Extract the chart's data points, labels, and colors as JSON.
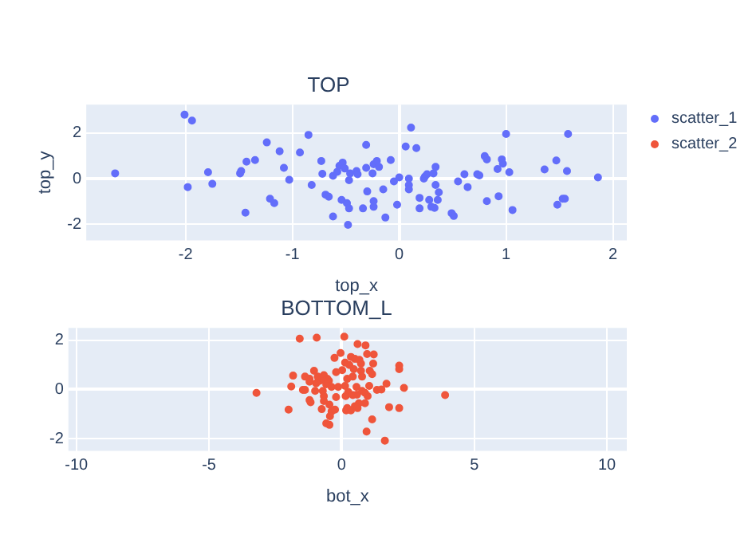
{
  "chart_data": [
    {
      "type": "scatter",
      "title": "TOP",
      "xlabel": "top_x",
      "ylabel": "top_y",
      "xlim": [
        -2.93,
        2.13
      ],
      "ylim": [
        -2.7,
        3.23
      ],
      "xticks": [
        -2,
        -1,
        0,
        1,
        2
      ],
      "yticks": [
        -2,
        0,
        2
      ],
      "grid": true,
      "legend": "right",
      "marker": "circle",
      "x": [
        -2.66,
        -2.01,
        -1.94,
        -1.98,
        -1.79,
        -1.75,
        -1.49,
        -1.48,
        -1.43,
        -1.44,
        -1.35,
        -1.24,
        -1.21,
        -1.17,
        -1.12,
        -1.08,
        -1.03,
        -0.93,
        -0.85,
        -0.82,
        -0.73,
        -0.72,
        -0.69,
        -0.66,
        -0.62,
        -0.62,
        -0.58,
        -0.56,
        -0.53,
        -0.51,
        -0.54,
        -0.49,
        -0.47,
        -0.48,
        -0.47,
        -0.46,
        -0.4,
        -0.39,
        -0.34,
        -0.31,
        -0.31,
        -0.3,
        -0.25,
        -0.24,
        -0.24,
        -0.24,
        -0.21,
        -0.19,
        -0.15,
        -0.13,
        -0.08,
        -0.05,
        -0.02,
        0.0,
        0.06,
        0.09,
        0.09,
        0.09,
        0.11,
        0.16,
        0.19,
        0.19,
        0.23,
        0.24,
        0.26,
        0.28,
        0.3,
        0.32,
        0.33,
        0.34,
        0.34,
        0.36,
        0.37,
        0.49,
        0.51,
        0.55,
        0.61,
        0.64,
        0.73,
        0.75,
        0.8,
        0.82,
        0.82,
        0.92,
        0.93,
        0.96,
        0.97,
        1.0,
        1.03,
        1.06,
        1.36,
        1.47,
        1.48,
        1.53,
        1.55,
        1.57,
        1.58,
        1.86
      ],
      "series": [
        {
          "name": "scatter_1",
          "color": "#636efa",
          "values": [
            0.23,
            2.79,
            2.53,
            -0.37,
            0.28,
            -0.23,
            0.23,
            0.33,
            0.74,
            -1.49,
            0.81,
            1.58,
            -0.88,
            -1.07,
            1.19,
            0.47,
            -0.05,
            1.14,
            1.91,
            -0.28,
            0.77,
            0.21,
            -0.7,
            -0.79,
            -1.65,
            0.12,
            0.3,
            0.56,
            0.7,
            0.44,
            -0.93,
            -1.07,
            -1.3,
            -2.02,
            -0.07,
            0.23,
            0.33,
            0.19,
            -1.3,
            0.47,
            1.47,
            -0.56,
            0.23,
            0.63,
            -0.98,
            -1.23,
            0.77,
            0.51,
            -0.47,
            -1.7,
            0.81,
            -0.12,
            -1.14,
            0.05,
            1.4,
            0.0,
            -0.28,
            -0.47,
            2.23,
            1.33,
            -0.84,
            -1.3,
            0.0,
            0.09,
            0.19,
            -0.93,
            -1.23,
            0.23,
            -1.28,
            0.51,
            -0.28,
            -0.93,
            -0.6,
            -1.51,
            -1.63,
            -0.12,
            0.19,
            -0.37,
            0.19,
            0.14,
            0.98,
            0.84,
            -0.98,
            0.42,
            -0.77,
            0.84,
            0.65,
            1.95,
            0.28,
            -1.37,
            0.4,
            0.79,
            -1.14,
            -0.88,
            -0.88,
            0.33,
            1.95,
            0.05
          ]
        }
      ]
    },
    {
      "type": "scatter",
      "title": "BOTTOM_L",
      "xlabel": "bot_x",
      "xlim": [
        -10.3,
        10.75
      ],
      "ylim": [
        -2.5,
        2.5
      ],
      "xticks": [
        -10,
        -5,
        0,
        5,
        10
      ],
      "yticks": [
        -2,
        0,
        2
      ],
      "grid": true,
      "legend": "right",
      "marker": "circle",
      "x": [
        -3.21,
        -1.58,
        -0.94,
        0.1,
        0.6,
        0.9,
        -0.04,
        0.96,
        1.21,
        -0.27,
        0.35,
        0.5,
        0.67,
        0.13,
        0.29,
        0.73,
        1.19,
        2.17,
        2.17,
        -1.04,
        -1.83,
        -1.38,
        -1.21,
        -0.9,
        -0.67,
        -0.54,
        -0.83,
        -0.73,
        -0.48,
        -0.21,
        0.02,
        0.46,
        0.73,
        1.06,
        1.15,
        0.77,
        0.42,
        0.21,
        -0.58,
        -0.96,
        -1.21,
        -1.9,
        -1.46,
        -1.38,
        -1.0,
        -0.71,
        -0.38,
        -0.13,
        0.13,
        0.25,
        0.56,
        0.77,
        1.04,
        1.33,
        1.5,
        1.69,
        2.35,
        3.9,
        -0.67,
        -1.21,
        -1.17,
        -0.67,
        -0.46,
        -0.21,
        0.15,
        0.42,
        0.58,
        0.88,
        0.98,
        0.65,
        0.88,
        0.5,
        0.21,
        0.17,
        0.35,
        0.6,
        -0.75,
        -0.38,
        -0.25,
        -0.44,
        -2.0,
        1.79,
        2.17,
        1.15,
        -0.58,
        -0.46,
        0.94,
        1.63
      ],
      "series": [
        {
          "name": "scatter_2",
          "color": "#ef553b",
          "values": [
            -0.14,
            2.06,
            2.1,
            2.14,
            1.84,
            1.79,
            1.48,
            1.44,
            1.42,
            1.28,
            1.32,
            1.24,
            1.2,
            1.09,
            0.99,
            1.05,
            1.05,
            0.97,
            0.82,
            0.76,
            0.56,
            0.52,
            0.43,
            0.52,
            0.58,
            0.43,
            0.35,
            0.39,
            0.35,
            0.7,
            0.78,
            0.82,
            0.76,
            0.76,
            0.62,
            0.52,
            0.52,
            0.43,
            0.21,
            0.25,
            0.31,
            0.12,
            -0.02,
            -0.02,
            -0.06,
            -0.06,
            0.1,
            0.1,
            0.14,
            -0.1,
            0.1,
            -0.06,
            0.14,
            -0.02,
            0.0,
            0.23,
            0.06,
            -0.23,
            -0.27,
            -0.43,
            -0.52,
            -0.47,
            -0.62,
            -0.31,
            -0.27,
            -0.23,
            -0.21,
            -0.14,
            -0.27,
            -0.56,
            -0.56,
            -0.68,
            -0.76,
            -0.85,
            -0.85,
            -0.76,
            -0.8,
            -0.89,
            -0.82,
            -1.09,
            -0.82,
            -0.72,
            -0.76,
            -1.22,
            -1.38,
            -1.44,
            -1.71,
            -2.08
          ]
        }
      ]
    }
  ]
}
